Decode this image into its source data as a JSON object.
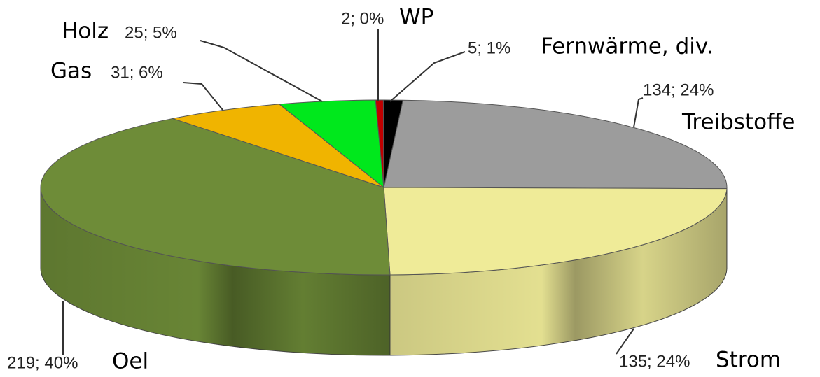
{
  "chart_data": {
    "type": "pie",
    "categories": [
      "Treibstoffe",
      "Strom",
      "Oel",
      "Gas",
      "Holz",
      "WP",
      "Fernwärme, div."
    ],
    "values": [
      134,
      135,
      219,
      31,
      25,
      2,
      5
    ],
    "value_labels": [
      "134; 24%",
      "135; 24%",
      "219; 40%",
      "31; 6%",
      "25; 5%",
      "2; 0%",
      "5; 1%"
    ],
    "colors": [
      "#9c9c9c",
      "#efeb98",
      "#6e8c38",
      "#f0b400",
      "#00e81c",
      "#c00000",
      "#000000"
    ]
  }
}
